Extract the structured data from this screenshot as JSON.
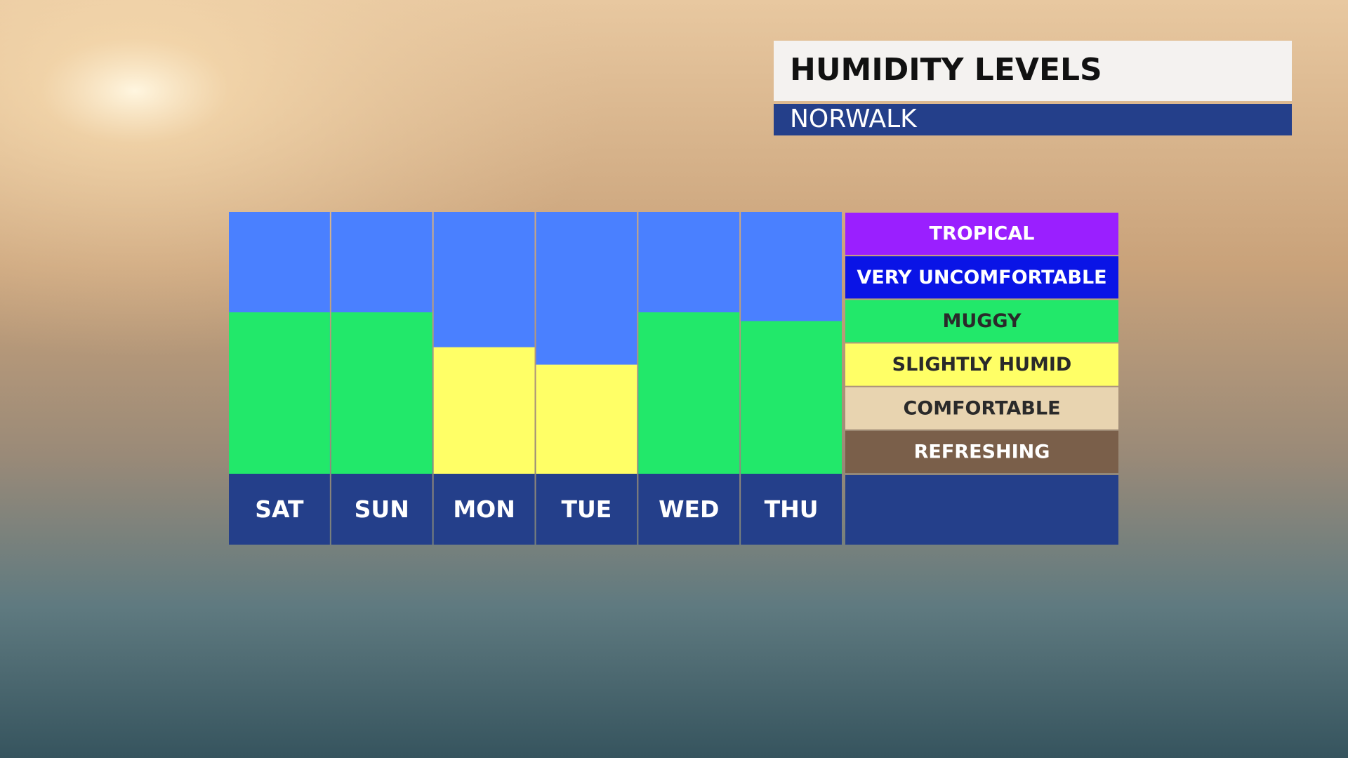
{
  "chart_data": {
    "type": "bar",
    "title": "HUMIDITY LEVELS",
    "subtitle": "NORWALK",
    "categories": [
      "SAT",
      "SUN",
      "MON",
      "TUE",
      "WED",
      "THU"
    ],
    "values": [
      3.7,
      3.7,
      2.9,
      2.5,
      3.7,
      3.5
    ],
    "ylim": [
      0,
      6
    ],
    "background_color": "#4a80ff",
    "levels": [
      {
        "name": "REFRESHING",
        "color": "#7a5f4a",
        "text_color": "#ffffff"
      },
      {
        "name": "COMFORTABLE",
        "color": "#e8d4b0",
        "text_color": "#2a2a2a"
      },
      {
        "name": "SLIGHTLY HUMID",
        "color": "#ffff66",
        "text_color": "#2a2a2a"
      },
      {
        "name": "MUGGY",
        "color": "#22e86a",
        "text_color": "#2a2a2a"
      },
      {
        "name": "VERY UNCOMFORTABLE",
        "color": "#0a14e6",
        "text_color": "#ffffff"
      },
      {
        "name": "TROPICAL",
        "color": "#9a1fff",
        "text_color": "#ffffff"
      }
    ]
  }
}
